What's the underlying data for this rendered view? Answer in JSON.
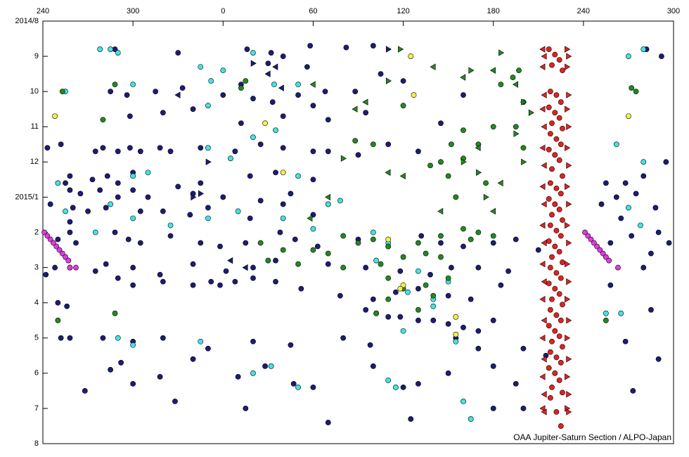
{
  "chart_data": {
    "type": "scatter",
    "credit": "OAA Jupiter-Saturn Section / ALPO-Japan",
    "xlim": [
      240,
      660
    ],
    "xticks": [
      240,
      300,
      {
        "value": 360,
        "label": "0"
      },
      {
        "value": 420,
        "label": "60"
      },
      {
        "value": 480,
        "label": "120"
      },
      {
        "value": 540,
        "label": "180"
      },
      {
        "value": 600,
        "label": "240"
      },
      {
        "value": 660,
        "label": "300"
      }
    ],
    "ylim": [
      0,
      12
    ],
    "y_inverted": true,
    "yticks": [
      {
        "value": 0,
        "label": "2014/8"
      },
      {
        "value": 1,
        "label": "9"
      },
      {
        "value": 2,
        "label": "10"
      },
      {
        "value": 3,
        "label": "11"
      },
      {
        "value": 4,
        "label": "12"
      },
      {
        "value": 5,
        "label": "2015/1"
      },
      {
        "value": 6,
        "label": "2"
      },
      {
        "value": 7,
        "label": "3"
      },
      {
        "value": 8,
        "label": "4"
      },
      {
        "value": 9,
        "label": "5"
      },
      {
        "value": 10,
        "label": "6"
      },
      {
        "value": 11,
        "label": "7"
      },
      {
        "value": 12,
        "label": "8"
      }
    ],
    "series": [
      {
        "color": "#1c1c78",
        "marker": "circle",
        "x": [
          288,
          330,
          376,
          392,
          400,
          418,
          442,
          460,
          390,
          416,
          285,
          296,
          315,
          333,
          360,
          372,
          380,
          393,
          410,
          420,
          428,
          448,
          465,
          480,
          520,
          298,
          320,
          340,
          372,
          400,
          430,
          455,
          505,
          252,
          275,
          280,
          290,
          298,
          305,
          318,
          325,
          345,
          368,
          385,
          400,
          420,
          430,
          450,
          470,
          490,
          258,
          273,
          283,
          290,
          300,
          330,
          345,
          378,
          395,
          420,
          258,
          265,
          278,
          290,
          300,
          310,
          340,
          360,
          385,
          405,
          260,
          270,
          282,
          305,
          320,
          338,
          350,
          378,
          400,
          420,
          258,
          262,
          288,
          297,
          305,
          325,
          345,
          358,
          375,
          398,
          408,
          423,
          450,
          470,
          492,
          505,
          520,
          540,
          555,
          570,
          258,
          275,
          282,
          300,
          318,
          340,
          362,
          380,
          395,
          430,
          455,
          478,
          498,
          512,
          530,
          550,
          290,
          300,
          320,
          340,
          352,
          358,
          368,
          380,
          395,
          412,
          438,
          460,
          475,
          490,
          510,
          525,
          545,
          455,
          462,
          470,
          478,
          490,
          500,
          510,
          520,
          530,
          540,
          258,
          280,
          300,
          320,
          350,
          380,
          405,
          440,
          458,
          515,
          530,
          560,
          575,
          285,
          292,
          318,
          340,
          370,
          388,
          420,
          460,
          490,
          510,
          540,
          555,
          268,
          300,
          328,
          375,
          407,
          480,
          560,
          540,
          485,
          430,
          615,
          628,
          640,
          655,
          622,
          635,
          648,
          612,
          625,
          618,
          632,
          650,
          645,
          657,
          640,
          618,
          645,
          628,
          650,
          633,
          642,
          652,
          243,
          255,
          258,
          245,
          250,
          248,
          242,
          250,
          256,
          252
        ],
        "values": [
          0.8,
          0.9,
          0.8,
          0.9,
          1.0,
          0.7,
          0.75,
          0.7,
          1.2,
          1.3,
          2.0,
          2.1,
          2.0,
          1.9,
          2.1,
          1.8,
          2.2,
          2.3,
          2.1,
          2.4,
          2.0,
          2.0,
          1.5,
          1.7,
          2.1,
          2.7,
          2.6,
          2.5,
          2.9,
          2.7,
          2.8,
          2.6,
          2.9,
          3.5,
          3.7,
          3.6,
          3.7,
          3.6,
          3.7,
          3.6,
          3.7,
          3.6,
          3.7,
          3.5,
          3.6,
          3.7,
          3.7,
          3.8,
          3.5,
          3.7,
          4.4,
          4.5,
          4.4,
          4.6,
          4.3,
          4.7,
          4.6,
          4.4,
          4.3,
          4.5,
          4.8,
          4.9,
          4.8,
          5.0,
          4.8,
          5.0,
          4.9,
          5.0,
          5.1,
          4.9,
          5.3,
          5.4,
          5.3,
          5.4,
          5.4,
          5.5,
          5.3,
          5.6,
          5.2,
          5.5,
          6.0,
          6.3,
          6.0,
          6.2,
          6.3,
          6.1,
          6.3,
          6.4,
          6.3,
          6.0,
          6.2,
          6.4,
          6.2,
          6.4,
          6.1,
          6.3,
          6.4,
          6.3,
          6.2,
          6.5,
          7.0,
          7.1,
          6.9,
          7.0,
          7.2,
          6.9,
          7.1,
          7.0,
          6.8,
          6.9,
          7.0,
          7.1,
          7.2,
          7.0,
          7.0,
          7.1,
          7.3,
          7.5,
          7.4,
          7.5,
          7.4,
          7.5,
          7.4,
          7.3,
          7.4,
          7.6,
          7.8,
          7.9,
          7.7,
          7.6,
          7.8,
          7.9,
          7.5,
          8.2,
          8.3,
          8.4,
          8.4,
          8.5,
          8.5,
          8.6,
          8.7,
          8.8,
          8.5,
          9.0,
          9.0,
          9.1,
          9.0,
          9.3,
          9.1,
          9.2,
          9.0,
          9.2,
          9.0,
          9.3,
          9.3,
          9.5,
          9.9,
          9.7,
          10.1,
          9.6,
          10.1,
          9.8,
          10.4,
          9.8,
          10.3,
          10.0,
          9.8,
          10.3,
          10.5,
          10.3,
          10.8,
          11.0,
          10.3,
          10.4,
          11.0,
          11.0,
          11.3,
          11.4,
          4.6,
          4.6,
          4.4,
          4.0,
          5.0,
          4.9,
          5.3,
          5.2,
          5.6,
          6.3,
          6.1,
          6.0,
          6.6,
          6.3,
          7.0,
          7.5,
          8.2,
          9.1,
          9.6,
          10.5,
          0.8,
          1.0,
          3.6,
          4.6,
          5.7,
          5.2,
          6.2,
          7.0,
          7.2,
          8.0,
          8.1,
          9.0
        ]
      },
      {
        "color": "#40e4e4",
        "marker": "circle",
        "x": [
          255,
          285,
          278,
          290,
          300,
          360,
          345,
          380,
          394,
          380,
          365,
          350,
          395,
          410,
          300,
          310,
          285,
          300,
          325,
          350,
          370,
          400,
          420,
          438,
          460,
          470,
          480,
          500,
          515,
          290,
          300,
          345,
          380,
          392,
          410,
          470,
          475,
          520,
          525,
          255,
          250,
          275,
          410,
          430,
          462,
          490,
          483,
          500,
          510,
          640,
          630,
          622,
          640,
          630,
          638,
          615,
          625,
          350,
          352
        ],
        "values": [
          2.0,
          0.8,
          0.8,
          0.9,
          1.8,
          1.4,
          1.3,
          0.9,
          1.8,
          3.3,
          3.9,
          3.6,
          3.1,
          1.8,
          4.4,
          4.3,
          5.2,
          5.6,
          5.8,
          5.6,
          5.4,
          5.6,
          5.9,
          5.1,
          6.0,
          6.3,
          8.8,
          8.1,
          9.1,
          9.0,
          9.2,
          9.1,
          10.0,
          9.8,
          10.4,
          10.2,
          10.4,
          10.8,
          11.3,
          5.4,
          4.6,
          6.0,
          4.4,
          5.2,
          6.8,
          7.1,
          7.7,
          7.9,
          7.4,
          0.8,
          1.0,
          3.5,
          4.0,
          5.3,
          5.8,
          8.3,
          8.3,
          2.4,
          1.7
        ]
      },
      {
        "color": "#218a21",
        "marker": "circle",
        "x": [
          253,
          288,
          280,
          375,
          372,
          448,
          460,
          498,
          512,
          520,
          505,
          545,
          553,
          557,
          560,
          560,
          555,
          540,
          530,
          520,
          510,
          515,
          535,
          530,
          540,
          520,
          505,
          430,
          440,
          450,
          460,
          470,
          490,
          420,
          400,
          385,
          390,
          410,
          440,
          465,
          480,
          495,
          505,
          525,
          480,
          495,
          510,
          470,
          462,
          490,
          500,
          470,
          250,
          615,
          635,
          632,
          288,
          480
        ],
        "values": [
          2.0,
          1.8,
          2.8,
          1.7,
          1.9,
          3.4,
          3.5,
          4.1,
          3.5,
          3.1,
          4.0,
          1.8,
          1.6,
          1.4,
          2.3,
          3.6,
          3.0,
          3.0,
          3.5,
          3.9,
          4.4,
          5.0,
          4.6,
          6.0,
          6.1,
          5.9,
          6.1,
          6.6,
          6.1,
          6.3,
          6.2,
          6.4,
          6.3,
          6.5,
          6.5,
          6.3,
          6.8,
          6.9,
          7.0,
          6.9,
          6.7,
          6.6,
          6.7,
          6.2,
          7.6,
          7.5,
          7.3,
          7.9,
          8.3,
          8.2,
          7.8,
          7.3,
          8.5,
          8.5,
          2.0,
          1.9,
          8.3,
          2.4
        ]
      },
      {
        "color": "#f5f04a",
        "marker": "circle",
        "x": [
          485,
          487,
          248,
          388,
          400,
          470,
          480,
          478,
          515,
          515,
          630
        ],
        "values": [
          1.0,
          2.1,
          2.7,
          2.9,
          4.3,
          6.2,
          7.5,
          7.6,
          8.4,
          8.9,
          2.7
        ]
      },
      {
        "color": "#e03ce0",
        "marker": "circle",
        "x": [
          241,
          243,
          245,
          247,
          249,
          251,
          253,
          255,
          257,
          262,
          258,
          601,
          603,
          605,
          607,
          609,
          611,
          613,
          615,
          623,
          617
        ],
        "values": [
          6.0,
          6.1,
          6.2,
          6.3,
          6.4,
          6.5,
          6.6,
          6.7,
          6.8,
          7.0,
          7.0,
          6.0,
          6.1,
          6.2,
          6.3,
          6.4,
          6.5,
          6.6,
          6.7,
          7.0,
          6.8
        ]
      },
      {
        "color": "#218a21",
        "marker": "triangle-left",
        "x": [
          420,
          448,
          455,
          500,
          520,
          540,
          555,
          530,
          480,
          505,
          430,
          418,
          470,
          545,
          540
        ],
        "values": [
          1.8,
          2.5,
          2.3,
          1.3,
          1.6,
          1.4,
          1.8,
          3.6,
          4.4,
          5.4,
          5.0,
          5.6,
          4.3,
          4.6,
          5.4
        ]
      },
      {
        "color": "#218a21",
        "marker": "triangle-right",
        "x": [
          478,
          525,
          545,
          560,
          520,
          530,
          535,
          440,
          470,
          555,
          565,
          560
        ],
        "values": [
          0.8,
          1.4,
          0.9,
          2.3,
          4.0,
          4.3,
          5.0,
          3.9,
          1.7,
          3.2,
          2.6,
          4.0
        ]
      },
      {
        "color": "#1c1c78",
        "marker": "triangle-left",
        "x": [
          390,
          395,
          399,
          330,
          365,
          375
        ],
        "values": [
          1.5,
          1.3,
          1.9,
          2.1,
          6.8,
          7.0
        ]
      },
      {
        "color": "#1c1c78",
        "marker": "triangle-right",
        "x": [
          350,
          345,
          470,
          380,
          340
        ],
        "values": [
          4.0,
          4.9,
          0.8,
          1.2,
          5.0
        ]
      },
      {
        "color": "#e62020",
        "marker": "circle",
        "x": [
          577,
          581,
          584,
          579,
          586,
          578,
          582,
          585,
          577,
          581,
          584,
          579,
          586,
          578,
          582,
          585,
          577,
          581,
          584,
          579,
          586,
          578,
          582,
          585,
          577,
          581,
          584,
          579,
          586,
          578,
          582,
          585,
          577,
          581,
          584,
          579,
          586,
          578,
          582,
          585,
          577,
          581,
          584,
          579,
          586,
          578,
          582,
          585,
          577,
          581,
          584,
          579,
          586,
          578,
          582,
          585,
          577,
          581,
          584,
          579,
          586,
          578,
          582,
          585
        ],
        "values": [
          0.8,
          0.95,
          1.1,
          1.25,
          1.4,
          2.0,
          2.1,
          2.3,
          2.45,
          2.6,
          2.75,
          2.9,
          3.05,
          3.2,
          3.35,
          3.5,
          3.65,
          3.8,
          3.95,
          4.2,
          4.4,
          4.6,
          4.75,
          4.9,
          5.05,
          5.2,
          5.35,
          5.5,
          5.65,
          5.8,
          5.95,
          6.1,
          6.25,
          6.4,
          6.55,
          6.7,
          6.85,
          7.0,
          7.15,
          7.3,
          7.45,
          7.6,
          7.75,
          7.9,
          8.05,
          8.2,
          8.35,
          8.5,
          8.65,
          8.8,
          8.95,
          9.1,
          9.25,
          9.4,
          9.55,
          9.7,
          9.85,
          10.0,
          10.2,
          10.4,
          10.55,
          10.7,
          11.1,
          11.5
        ]
      },
      {
        "color": "#e62020",
        "marker": "triangle-left",
        "x": [
          573,
          574,
          573,
          574,
          573,
          574,
          573,
          574,
          573,
          574,
          573,
          574,
          573,
          574,
          573,
          574,
          573,
          574,
          573,
          574,
          573,
          574
        ],
        "values": [
          0.8,
          1.0,
          1.3,
          2.1,
          2.5,
          3.0,
          3.6,
          4.1,
          4.7,
          5.2,
          5.8,
          6.3,
          6.9,
          7.4,
          7.9,
          8.5,
          9.0,
          9.6,
          10.1,
          10.6,
          11.0,
          11.1
        ]
      },
      {
        "color": "#e62020",
        "marker": "triangle-right",
        "x": [
          589,
          590,
          589,
          590,
          589,
          590,
          589,
          590,
          589,
          590,
          589,
          590,
          589,
          590,
          589,
          590,
          589,
          590,
          589,
          590,
          589,
          590
        ],
        "values": [
          0.8,
          1.0,
          1.3,
          2.1,
          2.5,
          3.0,
          3.6,
          4.1,
          4.7,
          5.2,
          5.8,
          6.3,
          6.9,
          7.4,
          7.9,
          8.5,
          9.0,
          9.6,
          10.1,
          10.6,
          11.0,
          11.1
        ]
      }
    ]
  }
}
